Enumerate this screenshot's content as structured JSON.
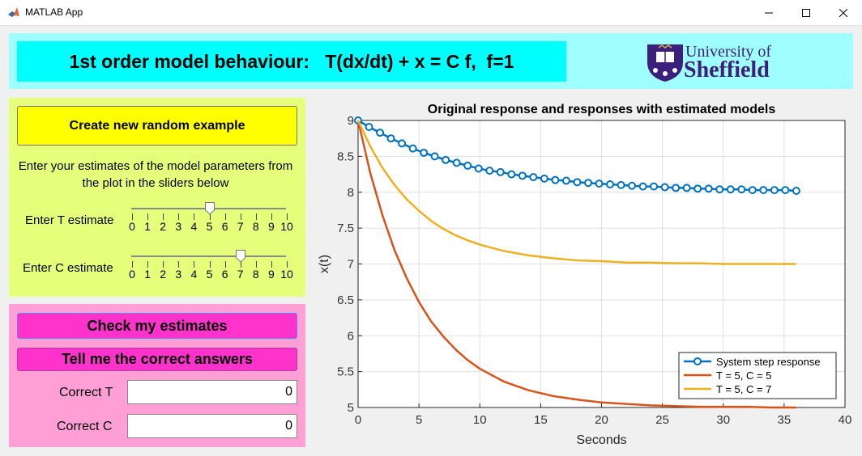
{
  "window": {
    "title": "MATLAB App",
    "buttons": [
      "minimize-icon",
      "maximize-icon",
      "close-icon"
    ]
  },
  "header": {
    "title": "1st order model behaviour:   T(dx/dt) + x = C f,  f=1",
    "logo_line1": "University of",
    "logo_line2": "Sheffield"
  },
  "controls": {
    "random_button": "Create new random example",
    "instructions": "Enter your estimates of the model parameters from the plot in the sliders below",
    "t_label": "Enter T estimate",
    "c_label": "Enter C estimate",
    "t_value": 5,
    "c_value": 7,
    "slider_min": 0,
    "slider_max": 10,
    "slider_ticks": [
      "0",
      "1",
      "2",
      "3",
      "4",
      "5",
      "6",
      "7",
      "8",
      "9",
      "10"
    ]
  },
  "answers": {
    "check_button": "Check my estimates",
    "tell_button": "Tell me the correct answers",
    "correct_t_label": "Correct T",
    "correct_c_label": "Correct C",
    "correct_t_value": "0",
    "correct_c_value": "0"
  },
  "colors": {
    "header_band": "#9ffffe",
    "header_title_bg": "#00ffff",
    "panel_green": "#e5ff7a",
    "panel_pink": "#ff9fd6",
    "yellow_button": "#ffff00",
    "pink_button": "#ff33cc",
    "series_blue": "#0072bd",
    "series_orange": "#d95319",
    "series_yellow": "#edb120",
    "logo_purple": "#3b1f7b"
  },
  "chart_data": {
    "type": "line",
    "title": "Original response and responses with estimated models",
    "xlabel": "Seconds",
    "ylabel": "x(t)",
    "xlim": [
      0,
      40
    ],
    "ylim": [
      5,
      9
    ],
    "xticks": [
      0,
      5,
      10,
      15,
      20,
      25,
      30,
      35,
      40
    ],
    "yticks": [
      5,
      5.5,
      6,
      6.5,
      7,
      7.5,
      8,
      8.5,
      9
    ],
    "grid": true,
    "legend_position": "bottom-right",
    "series": [
      {
        "name": "System step response",
        "color": "#0072bd",
        "marker": "circle",
        "x": [
          0,
          0.9,
          1.8,
          2.7,
          3.6,
          4.5,
          5.4,
          6.3,
          7.2,
          8.1,
          9.0,
          9.9,
          10.8,
          11.7,
          12.6,
          13.5,
          14.4,
          15.3,
          16.2,
          17.1,
          18.0,
          18.9,
          19.8,
          20.7,
          21.6,
          22.5,
          23.4,
          24.3,
          25.2,
          26.1,
          27.0,
          27.9,
          28.8,
          29.7,
          30.6,
          31.5,
          32.4,
          33.3,
          34.2,
          35.1,
          36.0
        ],
        "y": [
          9.0,
          8.91,
          8.83,
          8.75,
          8.68,
          8.61,
          8.55,
          8.5,
          8.45,
          8.41,
          8.37,
          8.33,
          8.3,
          8.28,
          8.25,
          8.23,
          8.21,
          8.19,
          8.17,
          8.16,
          8.14,
          8.13,
          8.12,
          8.11,
          8.1,
          8.09,
          8.08,
          8.08,
          8.07,
          8.06,
          8.06,
          8.05,
          8.05,
          8.04,
          8.04,
          8.04,
          8.03,
          8.03,
          8.03,
          8.03,
          8.02
        ]
      },
      {
        "name": "T = 5, C = 5",
        "color": "#d95319",
        "x": [
          0,
          1,
          2,
          3,
          4,
          5,
          6,
          7,
          8,
          9,
          10,
          12,
          14,
          16,
          18,
          20,
          22,
          24,
          26,
          28,
          30,
          32,
          34,
          36
        ],
        "y": [
          9.0,
          8.27,
          7.68,
          7.19,
          6.8,
          6.47,
          6.2,
          5.99,
          5.81,
          5.66,
          5.54,
          5.36,
          5.24,
          5.16,
          5.11,
          5.07,
          5.05,
          5.03,
          5.02,
          5.01,
          5.01,
          5.01,
          5.0,
          5.0
        ]
      },
      {
        "name": "T = 5, C = 7",
        "color": "#edb120",
        "x": [
          0,
          1,
          2,
          3,
          4,
          5,
          6,
          7,
          8,
          9,
          10,
          12,
          14,
          16,
          18,
          20,
          22,
          24,
          26,
          28,
          30,
          32,
          34,
          36
        ],
        "y": [
          9.0,
          8.64,
          8.34,
          8.1,
          7.9,
          7.74,
          7.6,
          7.49,
          7.4,
          7.33,
          7.27,
          7.18,
          7.12,
          7.08,
          7.05,
          7.04,
          7.02,
          7.02,
          7.01,
          7.01,
          7.0,
          7.0,
          7.0,
          7.0
        ]
      }
    ]
  }
}
